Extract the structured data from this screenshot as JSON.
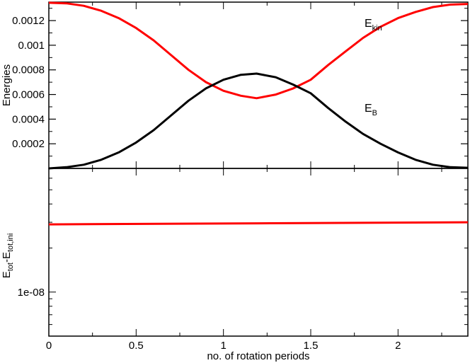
{
  "chart_data": [
    {
      "type": "line",
      "panel": "top",
      "ylabel": "Energies",
      "xlim": [
        0,
        2.4
      ],
      "ylim": [
        0,
        0.00135
      ],
      "yticks": [
        0.0002,
        0.0004,
        0.0006,
        0.0008,
        0.001,
        0.0012
      ],
      "ytick_labels": [
        "0.0002",
        "0.0004",
        "0.0006",
        "0.0008",
        "0.001",
        "0.0012"
      ],
      "series": [
        {
          "name": "E_kin",
          "color": "#ff0000",
          "x": [
            0,
            0.1,
            0.2,
            0.3,
            0.4,
            0.5,
            0.6,
            0.7,
            0.8,
            0.9,
            1.0,
            1.1,
            1.19,
            1.3,
            1.4,
            1.5,
            1.6,
            1.7,
            1.8,
            1.9,
            2.0,
            2.1,
            2.2,
            2.3,
            2.4
          ],
          "y": [
            0.001345,
            0.00134,
            0.00132,
            0.00128,
            0.00122,
            0.00114,
            0.00104,
            0.00092,
            0.0008,
            0.0007,
            0.00063,
            0.00059,
            0.00057,
            0.0006,
            0.00065,
            0.00072,
            0.00084,
            0.00095,
            0.00106,
            0.00115,
            0.00122,
            0.00127,
            0.00131,
            0.00133,
            0.001335
          ]
        },
        {
          "name": "E_B",
          "color": "#000000",
          "x": [
            0,
            0.1,
            0.2,
            0.3,
            0.4,
            0.5,
            0.6,
            0.7,
            0.8,
            0.9,
            1.0,
            1.1,
            1.19,
            1.3,
            1.4,
            1.5,
            1.6,
            1.7,
            1.8,
            1.9,
            2.0,
            2.1,
            2.2,
            2.3,
            2.4
          ],
          "y": [
            0.0,
            1e-05,
            3e-05,
            7e-05,
            0.00013,
            0.00021,
            0.00031,
            0.00043,
            0.00055,
            0.00065,
            0.00072,
            0.00076,
            0.00077,
            0.00074,
            0.00068,
            0.00061,
            0.00049,
            0.00038,
            0.00028,
            0.0002,
            0.00013,
            7e-05,
            3e-05,
            1e-05,
            5e-06
          ]
        }
      ],
      "annotations": [
        {
          "text": "E",
          "sub": "kin"
        },
        {
          "text": "E",
          "sub": "B"
        }
      ]
    },
    {
      "type": "line",
      "panel": "bottom",
      "scale": "log",
      "xlabel": "no. of rotation periods",
      "ylabel": {
        "main": "E",
        "sub1": "tot",
        "mid": "-E",
        "sub2": "tot,ini"
      },
      "xlim": [
        0,
        2.4
      ],
      "ylim": [
        5e-09,
        7e-08
      ],
      "xticks": [
        0,
        0.5,
        1,
        1.5,
        2
      ],
      "xtick_labels": [
        "0",
        "0.5",
        "1",
        "1.5",
        "2"
      ],
      "yticks": [
        1e-08
      ],
      "ytick_labels": [
        "1e-08"
      ],
      "series": [
        {
          "name": "",
          "color": "#ff0000",
          "x": [
            0,
            1.2,
            2.4
          ],
          "y": [
            2.9e-08,
            2.95e-08,
            3e-08
          ]
        }
      ]
    }
  ]
}
